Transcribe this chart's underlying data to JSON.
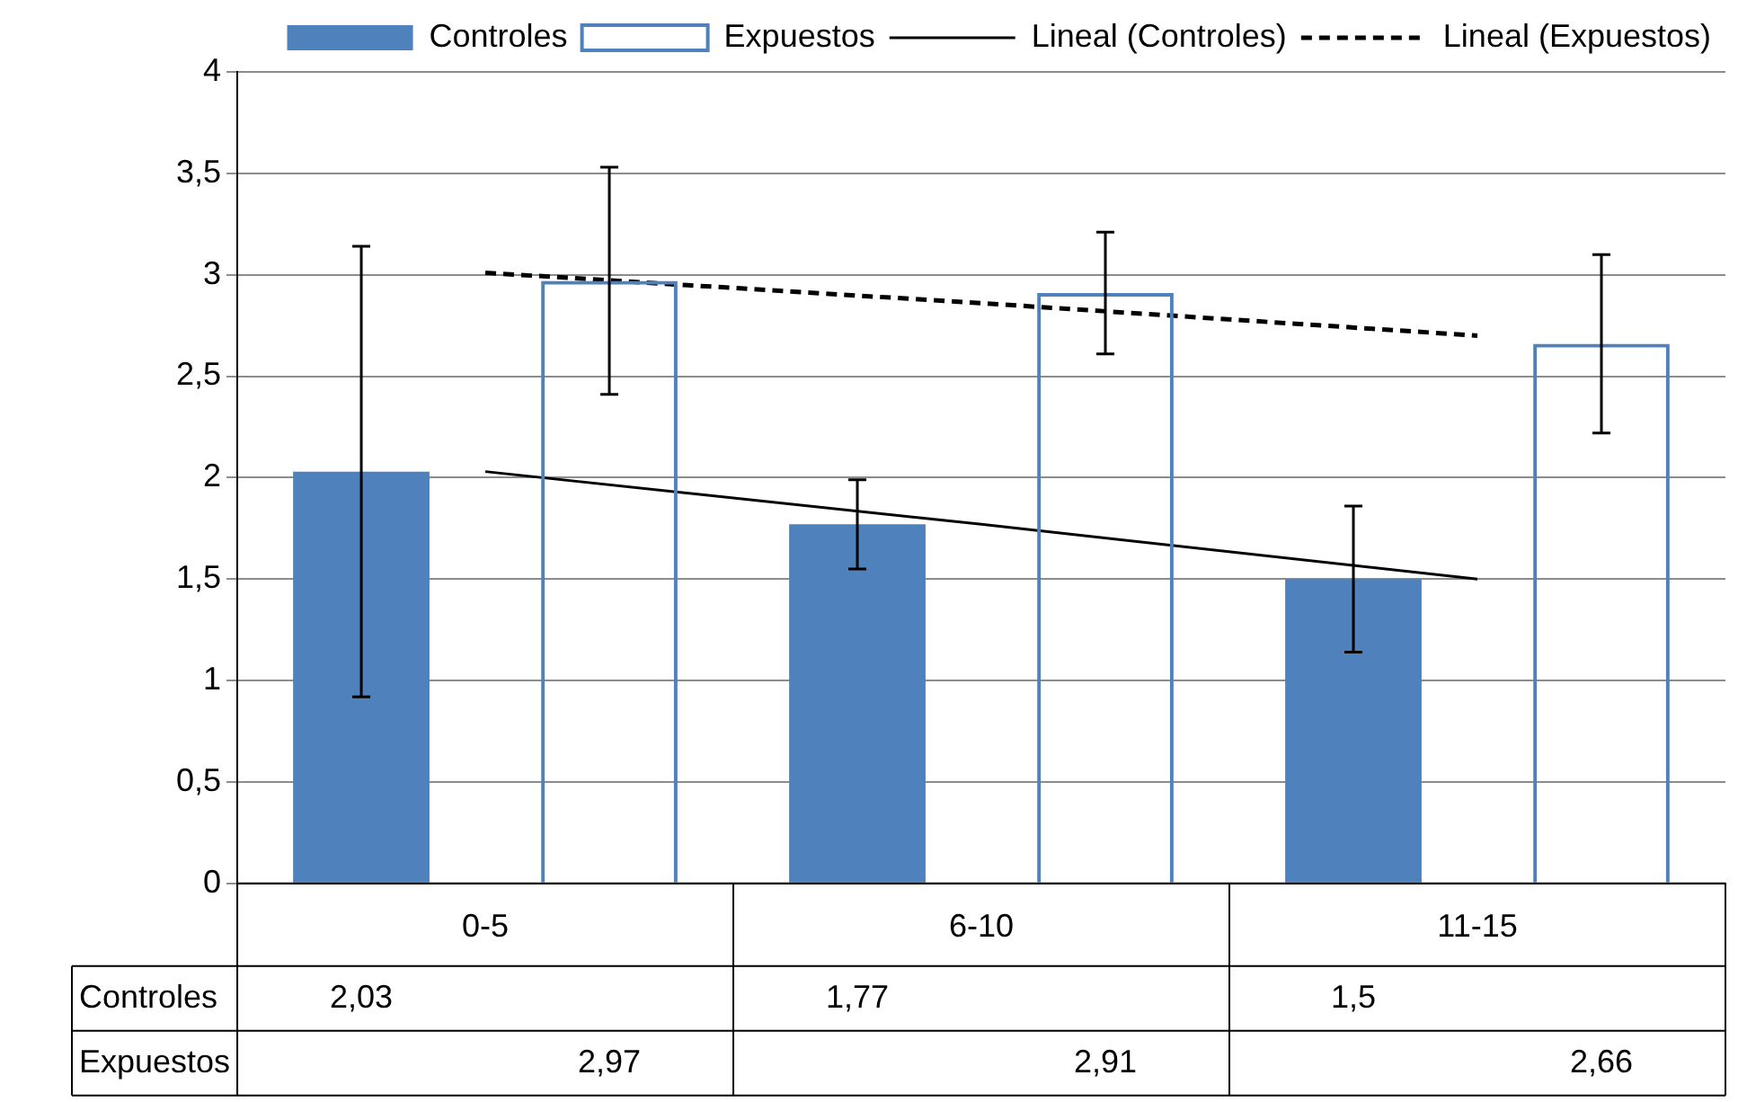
{
  "chart_data": {
    "type": "bar",
    "categories": [
      "0-5",
      "6-10",
      "11-15"
    ],
    "series": [
      {
        "name": "Controles",
        "color": "#4f81bd",
        "values": [
          2.03,
          1.77,
          1.5
        ],
        "value_labels": [
          "2,03",
          "1,77",
          "1,5"
        ],
        "errors": [
          1.11,
          0.22,
          0.36
        ]
      },
      {
        "name": "Expuestos",
        "color": "#4f81bd",
        "values": [
          2.97,
          2.91,
          2.66
        ],
        "value_labels": [
          "2,97",
          "2,91",
          "2,66"
        ],
        "errors": [
          0.56,
          0.3,
          0.44
        ]
      },
      {
        "name": "Lineal (Controles)",
        "type": "line",
        "color": "#000000",
        "line_style": "solid",
        "x": [
          "0-5",
          "6-10",
          "11-15"
        ],
        "values": [
          2.03,
          1.77,
          1.5
        ]
      },
      {
        "name": "Lineal (Expuestos)",
        "type": "line",
        "color": "#000000",
        "line_style": "dashed",
        "x": [
          "0-5",
          "6-10",
          "11-15"
        ],
        "values": [
          3.01,
          2.86,
          2.7
        ]
      }
    ],
    "ylim": [
      0,
      4
    ],
    "yticks": [
      0,
      {
        "value": 0.5,
        "label": "0,5"
      },
      1,
      {
        "value": 1.5,
        "label": "1,5"
      },
      2,
      {
        "value": 2.5,
        "label": "2,5"
      },
      3,
      {
        "value": 3.5,
        "label": "3,5"
      },
      4
    ],
    "grid": "y",
    "legend": "top"
  }
}
